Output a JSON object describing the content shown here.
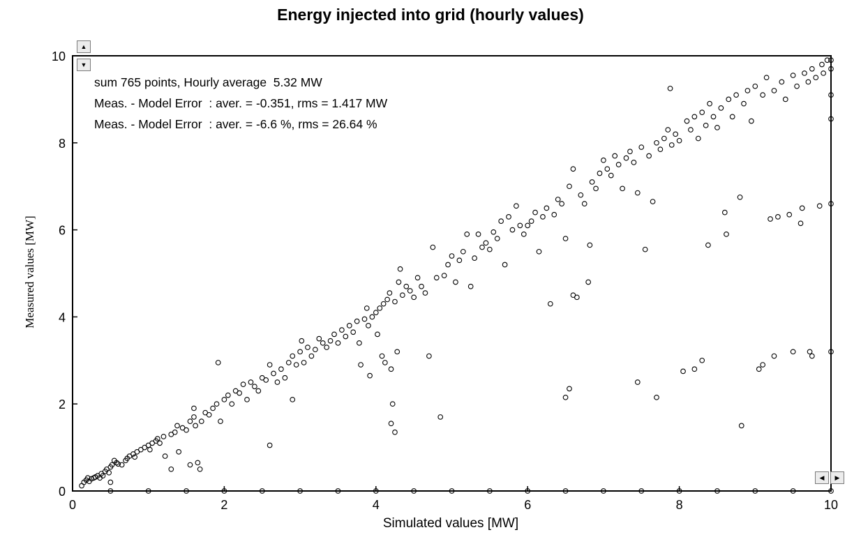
{
  "chart_data": {
    "type": "scatter",
    "title": "Energy injected into grid (hourly values)",
    "xlabel": "Simulated values [MW]",
    "ylabel": "Measured values  [MW]",
    "xlim": [
      0,
      10
    ],
    "ylim": [
      0,
      10
    ],
    "x_ticks": [
      "0",
      "2",
      "4",
      "6",
      "8",
      "10"
    ],
    "y_ticks": [
      "0",
      "2",
      "4",
      "6",
      "8",
      "10"
    ],
    "grid": false,
    "marker": "open-circle",
    "annotations": [
      "sum 765 points, Hourly average  5.32 MW",
      "Meas. - Model Error  : aver. = -0.351, rms = 1.417 MW",
      "Meas. - Model Error  : aver. = -6.6 %, rms = 26.64 %"
    ],
    "points": [
      [
        0.12,
        0.12
      ],
      [
        0.15,
        0.2
      ],
      [
        0.18,
        0.25
      ],
      [
        0.2,
        0.3
      ],
      [
        0.22,
        0.22
      ],
      [
        0.25,
        0.28
      ],
      [
        0.28,
        0.3
      ],
      [
        0.3,
        0.32
      ],
      [
        0.33,
        0.35
      ],
      [
        0.36,
        0.3
      ],
      [
        0.38,
        0.4
      ],
      [
        0.4,
        0.35
      ],
      [
        0.43,
        0.45
      ],
      [
        0.45,
        0.5
      ],
      [
        0.48,
        0.42
      ],
      [
        0.5,
        0.55
      ],
      [
        0.52,
        0.6
      ],
      [
        0.55,
        0.7
      ],
      [
        0.58,
        0.65
      ],
      [
        0.5,
        0.2
      ],
      [
        0.6,
        0.62
      ],
      [
        0.65,
        0.6
      ],
      [
        0.7,
        0.7
      ],
      [
        0.72,
        0.75
      ],
      [
        0.75,
        0.8
      ],
      [
        0.8,
        0.85
      ],
      [
        0.82,
        0.78
      ],
      [
        0.85,
        0.9
      ],
      [
        0.9,
        0.95
      ],
      [
        0.95,
        1.0
      ],
      [
        1.0,
        1.05
      ],
      [
        1.02,
        0.95
      ],
      [
        1.05,
        1.1
      ],
      [
        1.1,
        1.15
      ],
      [
        1.12,
        1.2
      ],
      [
        1.15,
        1.1
      ],
      [
        1.2,
        1.25
      ],
      [
        1.22,
        0.8
      ],
      [
        1.3,
        1.3
      ],
      [
        1.3,
        0.5
      ],
      [
        1.35,
        1.35
      ],
      [
        1.38,
        1.5
      ],
      [
        1.4,
        0.9
      ],
      [
        1.45,
        1.45
      ],
      [
        1.5,
        1.4
      ],
      [
        1.55,
        1.6
      ],
      [
        1.55,
        0.6
      ],
      [
        1.6,
        1.7
      ],
      [
        1.6,
        1.9
      ],
      [
        1.62,
        1.5
      ],
      [
        1.65,
        0.65
      ],
      [
        1.68,
        0.5
      ],
      [
        1.7,
        1.6
      ],
      [
        1.75,
        1.8
      ],
      [
        1.8,
        1.75
      ],
      [
        1.85,
        1.9
      ],
      [
        1.9,
        2.0
      ],
      [
        1.92,
        2.95
      ],
      [
        1.95,
        1.6
      ],
      [
        2.0,
        2.1
      ],
      [
        2.05,
        2.2
      ],
      [
        2.1,
        2.0
      ],
      [
        2.15,
        2.3
      ],
      [
        2.2,
        2.25
      ],
      [
        2.25,
        2.45
      ],
      [
        2.3,
        2.1
      ],
      [
        2.35,
        2.5
      ],
      [
        2.4,
        2.4
      ],
      [
        2.45,
        2.3
      ],
      [
        2.5,
        2.6
      ],
      [
        2.55,
        2.55
      ],
      [
        2.6,
        1.05
      ],
      [
        2.6,
        2.9
      ],
      [
        2.65,
        2.7
      ],
      [
        2.7,
        2.5
      ],
      [
        2.75,
        2.8
      ],
      [
        2.8,
        2.6
      ],
      [
        2.85,
        2.95
      ],
      [
        2.9,
        2.1
      ],
      [
        2.9,
        3.1
      ],
      [
        2.95,
        2.9
      ],
      [
        3.0,
        3.2
      ],
      [
        3.02,
        3.45
      ],
      [
        3.05,
        2.95
      ],
      [
        3.1,
        3.3
      ],
      [
        3.15,
        3.1
      ],
      [
        3.2,
        3.25
      ],
      [
        3.25,
        3.5
      ],
      [
        3.3,
        3.4
      ],
      [
        3.35,
        3.3
      ],
      [
        3.4,
        3.45
      ],
      [
        3.45,
        3.6
      ],
      [
        3.5,
        3.4
      ],
      [
        3.55,
        3.7
      ],
      [
        3.6,
        3.55
      ],
      [
        3.65,
        3.8
      ],
      [
        3.7,
        3.65
      ],
      [
        3.75,
        3.9
      ],
      [
        3.78,
        3.4
      ],
      [
        3.8,
        2.9
      ],
      [
        3.85,
        3.95
      ],
      [
        3.88,
        4.2
      ],
      [
        3.9,
        3.8
      ],
      [
        3.92,
        2.65
      ],
      [
        3.95,
        4.0
      ],
      [
        4.0,
        4.1
      ],
      [
        4.02,
        3.6
      ],
      [
        4.05,
        4.2
      ],
      [
        4.08,
        3.1
      ],
      [
        4.1,
        4.3
      ],
      [
        4.12,
        2.95
      ],
      [
        4.15,
        4.4
      ],
      [
        4.18,
        4.55
      ],
      [
        4.2,
        2.8
      ],
      [
        4.2,
        1.55
      ],
      [
        4.22,
        2.0
      ],
      [
        4.25,
        1.35
      ],
      [
        4.25,
        4.35
      ],
      [
        4.28,
        3.2
      ],
      [
        4.3,
        4.8
      ],
      [
        4.32,
        5.1
      ],
      [
        4.35,
        4.5
      ],
      [
        4.4,
        4.7
      ],
      [
        4.45,
        4.6
      ],
      [
        4.5,
        4.45
      ],
      [
        4.55,
        4.9
      ],
      [
        4.6,
        4.7
      ],
      [
        4.65,
        4.55
      ],
      [
        4.7,
        3.1
      ],
      [
        4.75,
        5.6
      ],
      [
        4.8,
        4.9
      ],
      [
        4.85,
        1.7
      ],
      [
        4.9,
        4.95
      ],
      [
        4.95,
        5.2
      ],
      [
        5.0,
        5.4
      ],
      [
        5.05,
        4.8
      ],
      [
        5.1,
        5.3
      ],
      [
        5.15,
        5.5
      ],
      [
        5.2,
        5.9
      ],
      [
        5.25,
        4.7
      ],
      [
        5.3,
        5.35
      ],
      [
        5.35,
        5.9
      ],
      [
        5.4,
        5.6
      ],
      [
        5.45,
        5.7
      ],
      [
        5.5,
        5.55
      ],
      [
        5.55,
        5.95
      ],
      [
        5.6,
        5.8
      ],
      [
        5.65,
        6.2
      ],
      [
        5.7,
        5.2
      ],
      [
        5.75,
        6.3
      ],
      [
        5.8,
        6.0
      ],
      [
        5.85,
        6.55
      ],
      [
        5.9,
        6.1
      ],
      [
        5.95,
        5.9
      ],
      [
        6.0,
        6.1
      ],
      [
        6.05,
        6.2
      ],
      [
        6.1,
        6.4
      ],
      [
        6.15,
        5.5
      ],
      [
        6.2,
        6.3
      ],
      [
        6.25,
        6.5
      ],
      [
        6.3,
        4.3
      ],
      [
        6.35,
        6.35
      ],
      [
        6.4,
        6.7
      ],
      [
        6.45,
        6.6
      ],
      [
        6.5,
        5.8
      ],
      [
        6.5,
        2.15
      ],
      [
        6.55,
        2.35
      ],
      [
        6.55,
        7.0
      ],
      [
        6.6,
        4.5
      ],
      [
        6.6,
        7.4
      ],
      [
        6.65,
        4.45
      ],
      [
        6.7,
        6.8
      ],
      [
        6.75,
        6.6
      ],
      [
        6.8,
        4.8
      ],
      [
        6.82,
        5.65
      ],
      [
        6.85,
        7.1
      ],
      [
        6.9,
        6.95
      ],
      [
        6.95,
        7.3
      ],
      [
        7.0,
        7.6
      ],
      [
        7.05,
        7.4
      ],
      [
        7.1,
        7.25
      ],
      [
        7.15,
        7.7
      ],
      [
        7.2,
        7.5
      ],
      [
        7.25,
        6.95
      ],
      [
        7.3,
        7.65
      ],
      [
        7.35,
        7.8
      ],
      [
        7.4,
        7.55
      ],
      [
        7.45,
        6.85
      ],
      [
        7.45,
        2.5
      ],
      [
        7.5,
        7.9
      ],
      [
        7.55,
        5.55
      ],
      [
        7.6,
        7.7
      ],
      [
        7.65,
        6.65
      ],
      [
        7.7,
        8.0
      ],
      [
        7.7,
        2.15
      ],
      [
        7.75,
        7.85
      ],
      [
        7.8,
        8.1
      ],
      [
        7.85,
        8.3
      ],
      [
        7.88,
        9.25
      ],
      [
        7.9,
        7.95
      ],
      [
        7.95,
        8.2
      ],
      [
        8.0,
        8.05
      ],
      [
        8.05,
        2.75
      ],
      [
        8.1,
        8.5
      ],
      [
        8.15,
        8.3
      ],
      [
        8.2,
        2.8
      ],
      [
        8.2,
        8.6
      ],
      [
        8.25,
        8.1
      ],
      [
        8.3,
        3.0
      ],
      [
        8.3,
        8.7
      ],
      [
        8.35,
        8.4
      ],
      [
        8.38,
        5.65
      ],
      [
        8.4,
        8.9
      ],
      [
        8.45,
        8.6
      ],
      [
        8.5,
        8.35
      ],
      [
        8.55,
        8.8
      ],
      [
        8.6,
        6.4
      ],
      [
        8.62,
        5.9
      ],
      [
        8.65,
        9.0
      ],
      [
        8.7,
        8.6
      ],
      [
        8.75,
        9.1
      ],
      [
        8.8,
        6.75
      ],
      [
        8.82,
        1.5
      ],
      [
        8.85,
        8.9
      ],
      [
        8.9,
        9.2
      ],
      [
        8.95,
        8.5
      ],
      [
        9.0,
        9.3
      ],
      [
        9.05,
        2.8
      ],
      [
        9.1,
        2.9
      ],
      [
        9.1,
        9.1
      ],
      [
        9.15,
        9.5
      ],
      [
        9.2,
        6.25
      ],
      [
        9.25,
        3.1
      ],
      [
        9.25,
        9.2
      ],
      [
        9.3,
        6.3
      ],
      [
        9.35,
        9.4
      ],
      [
        9.4,
        9.0
      ],
      [
        9.45,
        6.35
      ],
      [
        9.5,
        3.2
      ],
      [
        9.5,
        9.55
      ],
      [
        9.55,
        9.3
      ],
      [
        9.6,
        6.15
      ],
      [
        9.62,
        6.5
      ],
      [
        9.65,
        9.6
      ],
      [
        9.7,
        9.4
      ],
      [
        9.72,
        3.2
      ],
      [
        9.75,
        3.1
      ],
      [
        9.75,
        9.7
      ],
      [
        9.8,
        9.5
      ],
      [
        9.85,
        6.55
      ],
      [
        9.88,
        9.8
      ],
      [
        9.9,
        9.6
      ],
      [
        9.95,
        9.9
      ],
      [
        10.0,
        3.2
      ],
      [
        10.0,
        6.6
      ],
      [
        10.0,
        8.55
      ],
      [
        10.0,
        9.1
      ],
      [
        10.0,
        9.7
      ],
      [
        10.0,
        9.9
      ],
      [
        10.0,
        0.0
      ],
      [
        0.5,
        0.0
      ],
      [
        1.0,
        0.0
      ],
      [
        1.5,
        0.0
      ],
      [
        2.0,
        0.0
      ],
      [
        2.5,
        0.0
      ],
      [
        3.0,
        0.0
      ],
      [
        3.5,
        0.0
      ],
      [
        4.0,
        0.0
      ],
      [
        4.5,
        0.0
      ],
      [
        5.0,
        0.0
      ],
      [
        5.5,
        0.0
      ],
      [
        6.0,
        0.0
      ],
      [
        6.5,
        0.0
      ],
      [
        7.0,
        0.0
      ],
      [
        7.5,
        0.0
      ],
      [
        8.0,
        0.0
      ],
      [
        8.5,
        0.0
      ],
      [
        9.0,
        0.0
      ],
      [
        9.5,
        0.0
      ]
    ]
  },
  "scroll": {
    "up_icon": "triangle-up-icon",
    "down_icon": "triangle-down-icon",
    "left_icon": "triangle-left-icon",
    "right_icon": "triangle-right-icon"
  }
}
